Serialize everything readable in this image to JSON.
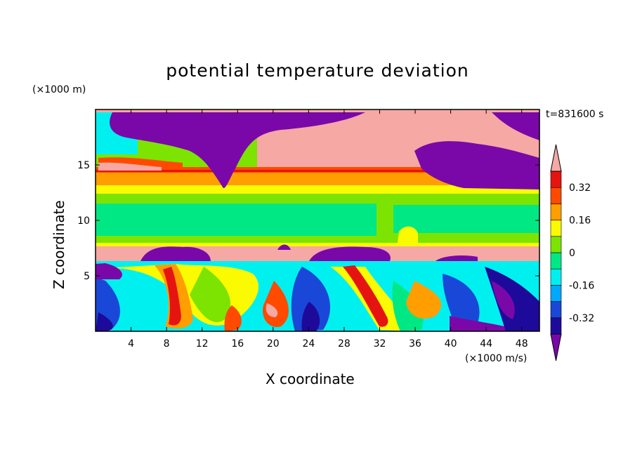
{
  "chart_data": {
    "type": "heatmap",
    "title": "potential temperature deviation",
    "xlabel": "X coordinate",
    "ylabel": "Z coordinate",
    "x_unit": "(×1000 m/s)",
    "y_unit": "(×1000 m)",
    "time_label": "t=831600 s",
    "xlim": [
      0,
      50
    ],
    "ylim": [
      0,
      20
    ],
    "x_ticks": [
      4,
      8,
      12,
      16,
      20,
      24,
      28,
      32,
      36,
      40,
      44,
      48
    ],
    "y_ticks": [
      5,
      10,
      15
    ],
    "colorbar": {
      "levels": [
        -0.4,
        -0.32,
        -0.24,
        -0.16,
        -0.08,
        0,
        0.08,
        0.16,
        0.24,
        0.32,
        0.4
      ],
      "labels": [
        "0.32",
        "0.16",
        "0",
        "-0.16",
        "-0.32"
      ],
      "label_values": [
        0.32,
        0.16,
        0,
        -0.16,
        -0.32
      ],
      "colors": [
        "#7a08a8",
        "#1e0a9a",
        "#1948d8",
        "#00a8ff",
        "#00f0f0",
        "#00e884",
        "#7ce400",
        "#fafa00",
        "#ff9e00",
        "#ff4a00",
        "#e61410",
        "#f6a8a4"
      ],
      "extend": "both"
    },
    "layers": [
      {
        "z_range": [
          18,
          20
        ],
        "value": "mixed: -0.4 and below (purple) left, above 0.4 (pink) right"
      },
      {
        "z_range": [
          14.5,
          16
        ],
        "value": "0.24 to 0.4"
      },
      {
        "z_range": [
          13,
          14.5
        ],
        "value": "0.16 to 0.32"
      },
      {
        "z_range": [
          8,
          13
        ],
        "value": "0 to 0.08"
      },
      {
        "z_range": [
          6.5,
          7.5
        ],
        "value": "above 0.4"
      },
      {
        "z_range": [
          0,
          6.5
        ],
        "value": "mixed turbulent -0.4 to 0.4"
      }
    ]
  }
}
